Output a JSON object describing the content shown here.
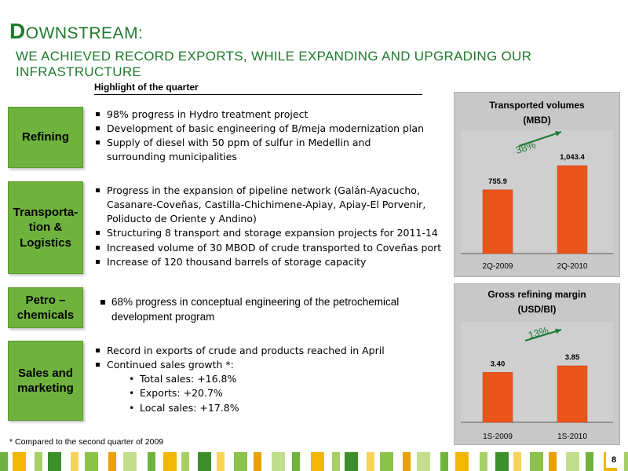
{
  "title": {
    "first_letter": "D",
    "rest": "OWNSTREAM:",
    "subtitle": "WE ACHIEVED RECORD EXPORTS, WHILE EXPANDING AND UPGRADING OUR INFRASTRUCTURE"
  },
  "highlight_label": "Highlight of the quarter",
  "sections": {
    "refining": {
      "label": "Refining",
      "items": [
        "98% progress in Hydro treatment project",
        "Development of basic engineering of B/meja modernization plan",
        "Supply of diesel with 50 ppm of sulfur in Medellin and",
        "surrounding municipalities"
      ]
    },
    "transport": {
      "label_l1": "Transporta-",
      "label_l2": "tion &",
      "label_l3": "Logistics",
      "items": [
        "Progress  in the expansion of pipeline network (Galán-Ayacucho,",
        "Casanare-Coveñas, Castilla-Chichimene-Apiay, Apiay-El Porvenir,",
        "Poliducto de Oriente y Andino)",
        "Structuring 8 transport and storage expansion projects for 2011-14",
        "Increased volume of 30 MBOD  of crude transported to Coveñas port",
        "Increase of  120 thousand barrels of  storage capacity"
      ]
    },
    "petro": {
      "label_l1": "Petro –",
      "label_l2": "chemicals",
      "items": [
        "68% progress in conceptual engineering of the petrochemical",
        "development program"
      ]
    },
    "sales": {
      "label_l1": "Sales and",
      "label_l2": "marketing",
      "items": [
        "Record in exports of crude and products reached in April",
        "Continued sales growth *:"
      ],
      "sub_items": [
        "Total sales:  +16.8%",
        "Exports:  +20.7%",
        "Local sales:  +17.8%"
      ]
    }
  },
  "footnote": "* Compared to the second quarter of 2009",
  "page_number": "8",
  "colors": {
    "title_green": "#1e7a2c",
    "box_green": "#6fb33e",
    "bar_orange": "#e8541a",
    "arrow_green": "#1f7a3a"
  },
  "chart_data": [
    {
      "type": "bar",
      "title_l1": "Transported volumes",
      "title_l2": "(MBD)",
      "categories": [
        "2Q-2009",
        "2Q-2010"
      ],
      "values": [
        755.9,
        1043.4
      ],
      "value_labels": [
        "755.9",
        "1,043.4"
      ],
      "growth_label": "38%"
    },
    {
      "type": "bar",
      "title_l1": "Gross refining margin",
      "title_l2": "(USD/Bl)",
      "categories": [
        "1S-2009",
        "1S-2010"
      ],
      "values": [
        3.4,
        3.85
      ],
      "value_labels": [
        "3.40",
        "3.85"
      ],
      "growth_label": "13%"
    }
  ]
}
